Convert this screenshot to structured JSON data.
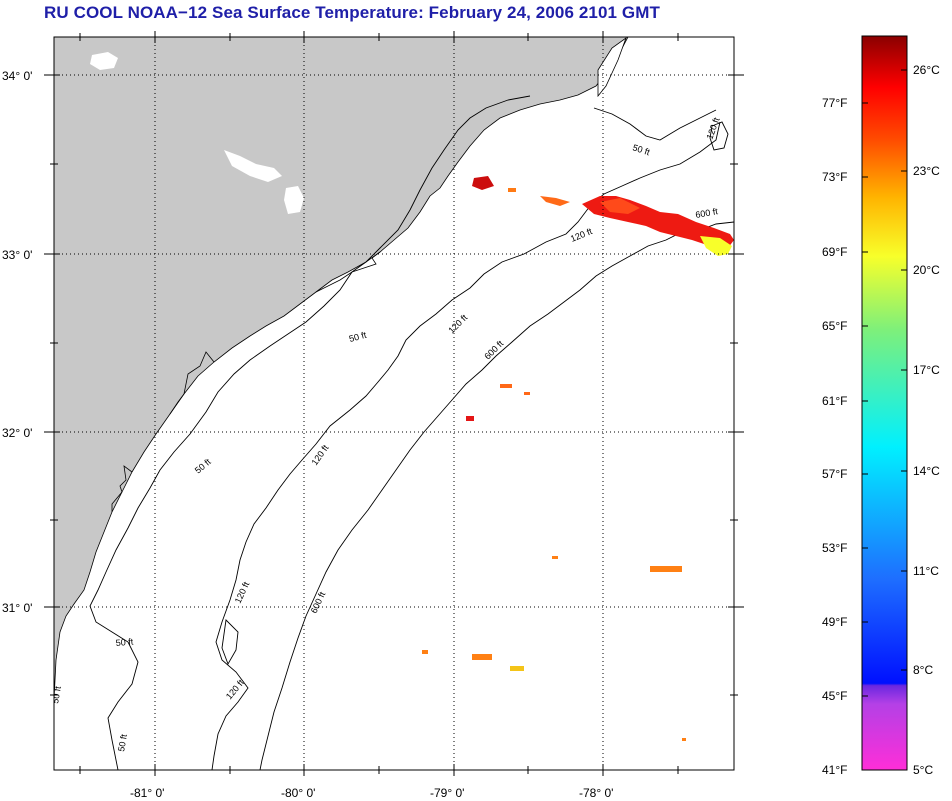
{
  "title": "RU COOL  NOAA−12  Sea Surface Temperature:  February 24, 2006 2101 GMT",
  "map": {
    "lat_labels": [
      "34° 0'",
      "33° 0'",
      "32° 0'",
      "31° 0'"
    ],
    "lon_labels": [
      "-81° 0'",
      "-80° 0'",
      "-79° 0'",
      "-78° 0'"
    ],
    "contour_labels": [
      "50 ft",
      "120 ft",
      "600 ft",
      "120 ft",
      "50 ft",
      "120 ft",
      "600 ft",
      "50 ft",
      "120 ft",
      "50 ft",
      "120 ft",
      "600 ft",
      "50 ft",
      "120 ft",
      "50 ft"
    ],
    "colors": {
      "land": "#c8c8c8",
      "ocean": "#ffffff",
      "grid": "#000000"
    }
  },
  "colorbar": {
    "f_labels": [
      "77°F",
      "73°F",
      "69°F",
      "65°F",
      "61°F",
      "57°F",
      "53°F",
      "49°F",
      "45°F",
      "41°F"
    ],
    "c_labels": [
      "26°C",
      "23°C",
      "20°C",
      "17°C",
      "14°C",
      "11°C",
      "8°C",
      "5°C"
    ]
  }
}
